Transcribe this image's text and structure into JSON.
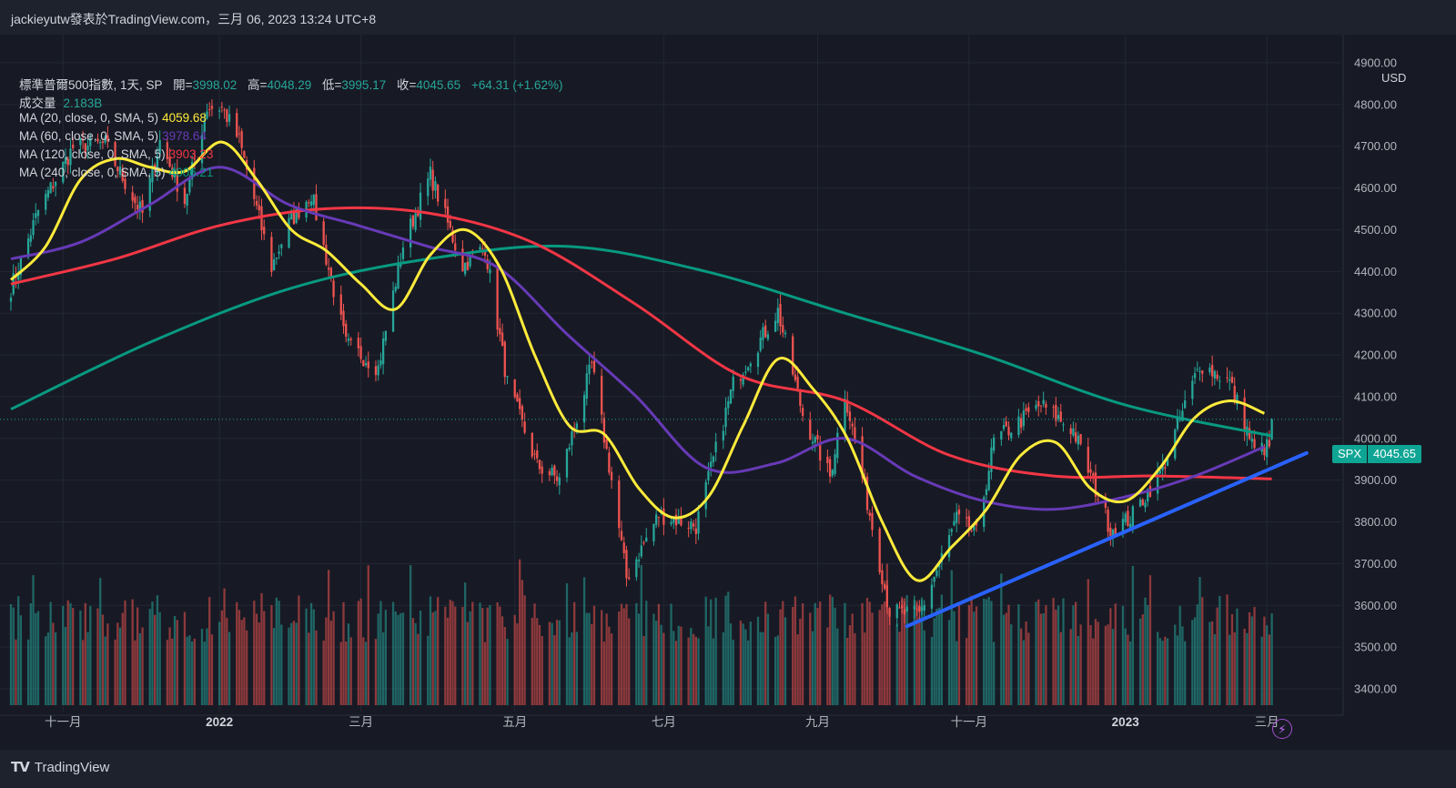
{
  "header": {
    "title": "jackieyutw發表於TradingView.com，三月 06, 2023 13:24 UTC+8"
  },
  "legend": {
    "symbol": "標準普爾500指數, 1天, SP",
    "open_label": "開=",
    "open": "3998.02",
    "high_label": "高=",
    "high": "4048.29",
    "low_label": "低=",
    "low": "3995.17",
    "close_label": "收=",
    "close": "4045.65",
    "change": "+64.31 (+1.62%)",
    "volume_label": "成交量",
    "volume": "2.183B",
    "ma20_label": "MA (20, close, 0, SMA, 5)",
    "ma20": "4059.68",
    "ma60_label": "MA (60, close, 0, SMA, 5)",
    "ma60": "3978.64",
    "ma120_label": "MA (120, close, 0, SMA, 5)",
    "ma120": "3903.23",
    "ma240_label": "MA (240, close, 0, SMA, 5)",
    "ma240": "4006.21"
  },
  "price_axis": {
    "currency": "USD"
  },
  "price_tag": {
    "symbol": "SPX",
    "price": "4045.65"
  },
  "footer": {
    "brand": "TradingView"
  },
  "colors": {
    "up": "#26a69a",
    "down": "#ef5350",
    "ma20": "#ffeb3b",
    "ma60": "#673ab7",
    "ma120": "#f23645",
    "ma240": "#089981",
    "trendline": "#2962ff",
    "background": "#171a24"
  },
  "chart_data": {
    "type": "line",
    "y_unit": "USD",
    "ylim": [
      3350,
      4950
    ],
    "y_ticks": [
      "4900.00",
      "4800.00",
      "4700.00",
      "4600.00",
      "4500.00",
      "4400.00",
      "4300.00",
      "4200.00",
      "4100.00",
      "4000.00",
      "3900.00",
      "3800.00",
      "3700.00",
      "3600.00",
      "3500.00",
      "3400.00"
    ],
    "y_tick_values": [
      4900,
      4800,
      4700,
      4600,
      4500,
      4400,
      4300,
      4200,
      4100,
      4000,
      3900,
      3800,
      3700,
      3600,
      3500,
      3400
    ],
    "x_range": [
      "2021-10-11",
      "2023-03-31"
    ],
    "x_ticks": [
      {
        "date": "2021-11-01",
        "label": "十一月"
      },
      {
        "date": "2022-01-03",
        "label": "2022"
      },
      {
        "date": "2022-03-01",
        "label": "三月"
      },
      {
        "date": "2022-05-02",
        "label": "五月"
      },
      {
        "date": "2022-07-01",
        "label": "七月"
      },
      {
        "date": "2022-09-01",
        "label": "九月"
      },
      {
        "date": "2022-11-01",
        "label": "十一月"
      },
      {
        "date": "2023-01-03",
        "label": "2023"
      },
      {
        "date": "2023-03-01",
        "label": "三月"
      }
    ],
    "close_series": [
      [
        "2021-10-11",
        4360
      ],
      [
        "2021-10-22",
        4545
      ],
      [
        "2021-11-05",
        4697
      ],
      [
        "2021-11-18",
        4705
      ],
      [
        "2021-11-30",
        4567
      ],
      [
        "2021-12-03",
        4538
      ],
      [
        "2021-12-10",
        4712
      ],
      [
        "2021-12-20",
        4568
      ],
      [
        "2021-12-29",
        4793
      ],
      [
        "2022-01-04",
        4793
      ],
      [
        "2022-01-11",
        4713
      ],
      [
        "2022-01-24",
        4410
      ],
      [
        "2022-01-31",
        4515
      ],
      [
        "2022-02-09",
        4587
      ],
      [
        "2022-02-23",
        4226
      ],
      [
        "2022-03-08",
        4170
      ],
      [
        "2022-03-18",
        4463
      ],
      [
        "2022-03-29",
        4632
      ],
      [
        "2022-04-11",
        4413
      ],
      [
        "2022-04-20",
        4459
      ],
      [
        "2022-04-29",
        4132
      ],
      [
        "2022-05-11",
        3935
      ],
      [
        "2022-05-20",
        3901
      ],
      [
        "2022-06-02",
        4176
      ],
      [
        "2022-06-10",
        3900
      ],
      [
        "2022-06-16",
        3666
      ],
      [
        "2022-06-29",
        3818
      ],
      [
        "2022-07-14",
        3790
      ],
      [
        "2022-07-29",
        4130
      ],
      [
        "2022-08-16",
        4305
      ],
      [
        "2022-08-26",
        4058
      ],
      [
        "2022-09-06",
        3908
      ],
      [
        "2022-09-12",
        4110
      ],
      [
        "2022-09-30",
        3585
      ],
      [
        "2022-10-12",
        3577
      ],
      [
        "2022-10-27",
        3807
      ],
      [
        "2022-11-04",
        3770
      ],
      [
        "2022-11-11",
        3993
      ],
      [
        "2022-11-30",
        4080
      ],
      [
        "2022-12-13",
        4020
      ],
      [
        "2022-12-28",
        3783
      ],
      [
        "2023-01-05",
        3808
      ],
      [
        "2023-01-18",
        3928
      ],
      [
        "2023-02-02",
        4179
      ],
      [
        "2023-02-14",
        4136
      ],
      [
        "2023-02-24",
        3970
      ],
      [
        "2023-03-02",
        3981
      ],
      [
        "2023-03-03",
        4045.65
      ]
    ],
    "ohlc_last": {
      "open": 3998.02,
      "high": 4048.29,
      "low": 3995.17,
      "close": 4045.65
    },
    "ma_series": [
      {
        "name": "MA (20, close, 0, SMA, 5)",
        "color": "#ffeb3b",
        "points": [
          [
            "2021-10-11",
            4380
          ],
          [
            "2021-10-25",
            4460
          ],
          [
            "2021-11-08",
            4620
          ],
          [
            "2021-11-22",
            4670
          ],
          [
            "2021-12-06",
            4650
          ],
          [
            "2021-12-20",
            4640
          ],
          [
            "2022-01-04",
            4710
          ],
          [
            "2022-01-18",
            4620
          ],
          [
            "2022-02-01",
            4500
          ],
          [
            "2022-02-15",
            4450
          ],
          [
            "2022-03-01",
            4370
          ],
          [
            "2022-03-15",
            4310
          ],
          [
            "2022-03-29",
            4440
          ],
          [
            "2022-04-12",
            4500
          ],
          [
            "2022-04-26",
            4410
          ],
          [
            "2022-05-10",
            4200
          ],
          [
            "2022-05-24",
            4030
          ],
          [
            "2022-06-07",
            4010
          ],
          [
            "2022-06-21",
            3880
          ],
          [
            "2022-07-05",
            3810
          ],
          [
            "2022-07-19",
            3860
          ],
          [
            "2022-08-02",
            4030
          ],
          [
            "2022-08-16",
            4190
          ],
          [
            "2022-08-30",
            4120
          ],
          [
            "2022-09-13",
            4000
          ],
          [
            "2022-09-27",
            3800
          ],
          [
            "2022-10-11",
            3660
          ],
          [
            "2022-10-25",
            3740
          ],
          [
            "2022-11-08",
            3830
          ],
          [
            "2022-11-22",
            3960
          ],
          [
            "2022-12-06",
            3990
          ],
          [
            "2022-12-20",
            3880
          ],
          [
            "2023-01-03",
            3850
          ],
          [
            "2023-01-17",
            3930
          ],
          [
            "2023-01-31",
            4050
          ],
          [
            "2023-02-14",
            4090
          ],
          [
            "2023-02-28",
            4060
          ]
        ]
      },
      {
        "name": "MA (60, close, 0, SMA, 5)",
        "color": "#673ab7",
        "points": [
          [
            "2021-10-11",
            4430
          ],
          [
            "2021-11-08",
            4470
          ],
          [
            "2021-12-06",
            4560
          ],
          [
            "2022-01-03",
            4650
          ],
          [
            "2022-01-31",
            4560
          ],
          [
            "2022-02-28",
            4510
          ],
          [
            "2022-03-28",
            4460
          ],
          [
            "2022-04-25",
            4410
          ],
          [
            "2022-05-23",
            4250
          ],
          [
            "2022-06-20",
            4100
          ],
          [
            "2022-07-18",
            3930
          ],
          [
            "2022-08-15",
            3940
          ],
          [
            "2022-09-12",
            4000
          ],
          [
            "2022-10-10",
            3910
          ],
          [
            "2022-11-07",
            3850
          ],
          [
            "2022-12-05",
            3830
          ],
          [
            "2023-01-03",
            3860
          ],
          [
            "2023-01-31",
            3910
          ],
          [
            "2023-02-28",
            3980
          ]
        ]
      },
      {
        "name": "MA (120, close, 0, SMA, 5)",
        "color": "#f23645",
        "points": [
          [
            "2021-10-11",
            4370
          ],
          [
            "2021-11-22",
            4430
          ],
          [
            "2022-01-03",
            4510
          ],
          [
            "2022-02-14",
            4550
          ],
          [
            "2022-03-28",
            4540
          ],
          [
            "2022-05-09",
            4470
          ],
          [
            "2022-06-20",
            4320
          ],
          [
            "2022-08-01",
            4150
          ],
          [
            "2022-09-12",
            4090
          ],
          [
            "2022-10-24",
            3960
          ],
          [
            "2022-12-05",
            3910
          ],
          [
            "2023-01-16",
            3910
          ],
          [
            "2023-03-03",
            3903
          ]
        ]
      },
      {
        "name": "MA (240, close, 0, SMA, 5)",
        "color": "#089981",
        "points": [
          [
            "2021-10-11",
            4070
          ],
          [
            "2021-12-06",
            4230
          ],
          [
            "2022-02-01",
            4360
          ],
          [
            "2022-03-28",
            4430
          ],
          [
            "2022-05-23",
            4460
          ],
          [
            "2022-07-18",
            4400
          ],
          [
            "2022-09-12",
            4300
          ],
          [
            "2022-11-07",
            4200
          ],
          [
            "2023-01-03",
            4080
          ],
          [
            "2023-03-03",
            4006
          ]
        ]
      }
    ],
    "trendline": {
      "start": [
        "2022-10-07",
        3550
      ],
      "end": [
        "2023-03-17",
        3965
      ]
    },
    "volume": {
      "last": "2.183B"
    },
    "grid": true,
    "legend_position": "top-left"
  }
}
